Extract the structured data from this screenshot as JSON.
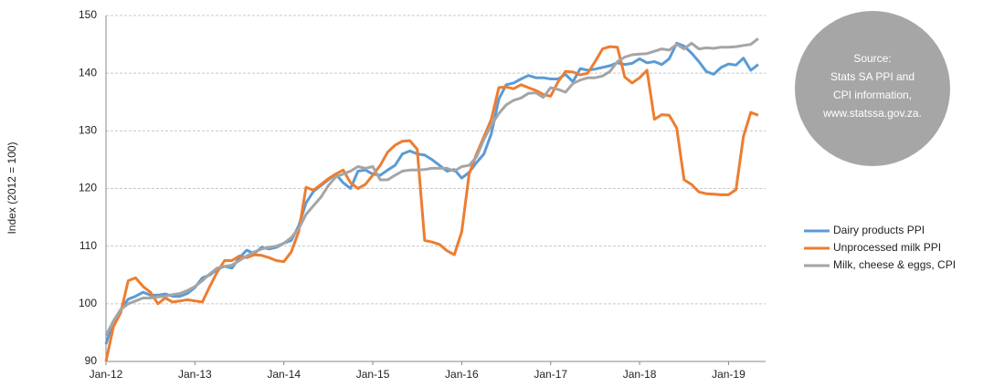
{
  "chart_data": {
    "type": "line",
    "y_label": "Index (2012 = 100)",
    "categories": [
      "Jan-12",
      null,
      null,
      null,
      null,
      null,
      null,
      null,
      null,
      null,
      null,
      null,
      "Jan-13",
      null,
      null,
      null,
      null,
      null,
      null,
      null,
      null,
      null,
      null,
      null,
      "Jan-14",
      null,
      null,
      null,
      null,
      null,
      null,
      null,
      null,
      null,
      null,
      null,
      "Jan-15",
      null,
      null,
      null,
      null,
      null,
      null,
      null,
      null,
      null,
      null,
      null,
      "Jan-16",
      null,
      null,
      null,
      null,
      null,
      null,
      null,
      null,
      null,
      null,
      null,
      "Jan-17",
      null,
      null,
      null,
      null,
      null,
      null,
      null,
      null,
      null,
      null,
      null,
      "Jan-18",
      null,
      null,
      null,
      null,
      null,
      null,
      null,
      null,
      null,
      null,
      null,
      "Jan-19",
      null,
      null,
      null,
      null
    ],
    "series": [
      {
        "name": "Dairy products PPI",
        "color": "#5b9bd5",
        "values": [
          93,
          97,
          99,
          100.8,
          101.3,
          102,
          101.5,
          101.5,
          101.7,
          101.3,
          101.3,
          101.8,
          102.8,
          104.5,
          105,
          106,
          106.5,
          106.2,
          108,
          109.3,
          108.7,
          109.8,
          109.5,
          109.8,
          110.5,
          111,
          113.5,
          117.5,
          119.5,
          120.5,
          121.5,
          122.5,
          121,
          120,
          123,
          123.2,
          122.5,
          122.3,
          123.2,
          124,
          126,
          126.5,
          126,
          125.8,
          125,
          124,
          123,
          123.3,
          121.8,
          122.8,
          124.5,
          126,
          129.5,
          135.5,
          138,
          138.3,
          139,
          139.6,
          139.2,
          139.2,
          139,
          139,
          139.8,
          138.5,
          140.8,
          140.5,
          140.7,
          141,
          141.3,
          141.8,
          141.5,
          141.7,
          142.5,
          141.8,
          142,
          141.5,
          142.5,
          145.2,
          144.7,
          143.5,
          142,
          140.3,
          139.8,
          141,
          141.6,
          141.4,
          142.6,
          140.5,
          141.5
        ]
      },
      {
        "name": "Unprocessed milk PPI",
        "color": "#ed7d31",
        "values": [
          90,
          96,
          98.5,
          104,
          104.5,
          103,
          102,
          100,
          101,
          100.3,
          100.5,
          100.7,
          100.5,
          100.3,
          103,
          105.5,
          107.5,
          107.5,
          108.3,
          108,
          108.5,
          108.4,
          108,
          107.5,
          107.3,
          109,
          112.5,
          120.2,
          119.7,
          120.7,
          121.7,
          122.5,
          123.2,
          121,
          120,
          120.7,
          122.3,
          124,
          126.3,
          127.5,
          128.2,
          128.3,
          126.8,
          111,
          110.7,
          110.3,
          109.2,
          108.5,
          112.5,
          122.5,
          126,
          129,
          132,
          137.5,
          137.6,
          137.3,
          138,
          137.5,
          137,
          136.3,
          136,
          138.5,
          140.3,
          140.2,
          139.7,
          140,
          142,
          144.2,
          144.6,
          144.5,
          139.3,
          138.3,
          139.2,
          140.5,
          132,
          132.8,
          132.7,
          130.5,
          121.5,
          120.7,
          119.4,
          119.1,
          119,
          118.9,
          118.9,
          119.8,
          129,
          133.2,
          132.7
        ]
      },
      {
        "name": "Milk, cheese & eggs, CPI",
        "color": "#a5a5a5",
        "values": [
          94.5,
          97,
          99,
          100,
          100.5,
          101,
          101,
          101.2,
          101.3,
          101.6,
          101.8,
          102.3,
          103,
          104,
          105.2,
          106.2,
          106.5,
          106.7,
          107.5,
          108.3,
          109,
          109.5,
          109.8,
          110,
          110.5,
          111.5,
          113,
          115.5,
          117,
          118.5,
          120.5,
          122,
          122.5,
          123,
          123.8,
          123.5,
          123.8,
          121.5,
          121.5,
          122.3,
          123,
          123.2,
          123.2,
          123.3,
          123.5,
          123.5,
          123.5,
          123,
          123.8,
          124,
          125.5,
          128.5,
          131,
          133,
          134.5,
          135.3,
          135.7,
          136.5,
          136.6,
          135.8,
          137.5,
          137.2,
          136.7,
          138.2,
          138.8,
          139.2,
          139.2,
          139.5,
          140.3,
          142,
          142.8,
          143.2,
          143.3,
          143.4,
          143.8,
          144.2,
          144,
          145,
          144.2,
          145.2,
          144.2,
          144.4,
          144.3,
          144.5,
          144.5,
          144.6,
          144.8,
          145,
          146
        ]
      }
    ],
    "ylim": [
      90,
      150
    ],
    "yticks": [
      90,
      100,
      110,
      120,
      130,
      140,
      150
    ],
    "grid": true,
    "legend": "right",
    "annotation": [
      "Source:",
      "Stats SA PPI and",
      "CPI information,",
      "www.statssa.gov.za."
    ]
  }
}
